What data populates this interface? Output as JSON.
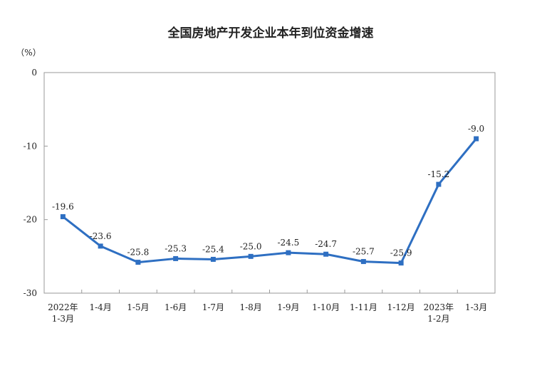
{
  "chart_data": {
    "type": "line",
    "title": "全国房地产开发企业本年到位资金增速",
    "y_label": "（%）",
    "categories": [
      "2022年\n1-3月",
      "1-4月",
      "1-5月",
      "1-6月",
      "1-7月",
      "1-8月",
      "1-9月",
      "1-10月",
      "1-11月",
      "1-12月",
      "2023年\n1-2月",
      "1-3月"
    ],
    "values": [
      -19.6,
      -23.6,
      -25.8,
      -25.3,
      -25.4,
      -25.0,
      -24.5,
      -24.7,
      -25.7,
      -25.9,
      -15.2,
      -9.0
    ],
    "value_labels": [
      "-19.6",
      "-23.6",
      "-25.8",
      "-25.3",
      "-25.4",
      "-25.0",
      "-24.5",
      "-24.7",
      "-25.7",
      "-25.9",
      "-15.2",
      "-9.0"
    ],
    "color": "#2e6fc2",
    "ylim": [
      -30,
      0
    ],
    "yticks": [
      0,
      -10,
      -20,
      -30
    ]
  }
}
